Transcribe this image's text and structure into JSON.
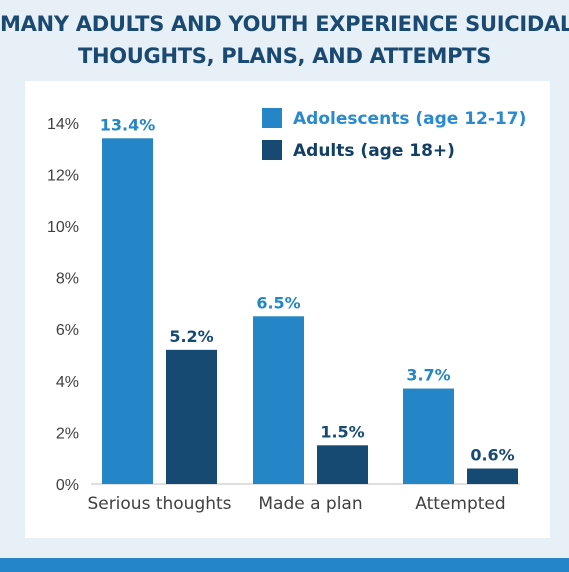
{
  "title_line1": "MANY ADULTS AND YOUTH EXPERIENCE SUICIDAL",
  "title_line2": "THOUGHTS, PLANS, AND ATTEMPTS",
  "colors": {
    "adolescents": "#2486c6",
    "adults": "#174a73",
    "title": "#1a4a72",
    "background": "#e8f0f7",
    "legend_adolescents_text": "#2a8ad0",
    "legend_adults_text": "#123f66"
  },
  "chart_data": {
    "type": "bar",
    "categories": [
      "Serious thoughts",
      "Made a plan",
      "Attempted"
    ],
    "series": [
      {
        "name": "Adolescents (age 12-17)",
        "values": [
          13.4,
          6.5,
          3.7
        ],
        "labels": [
          "13.4%",
          "6.5%",
          "3.7%"
        ]
      },
      {
        "name": "Adults (age 18+)",
        "values": [
          5.2,
          1.5,
          0.6
        ],
        "labels": [
          "5.2%",
          "1.5%",
          "0.6%"
        ]
      }
    ],
    "yticks": [
      0,
      2,
      4,
      6,
      8,
      10,
      12,
      14
    ],
    "ytick_labels": [
      "0%",
      "2%",
      "4%",
      "6%",
      "8%",
      "10%",
      "12%",
      "14%"
    ],
    "ylim": [
      0,
      14
    ],
    "grid": false,
    "legend_position": "top-right"
  }
}
